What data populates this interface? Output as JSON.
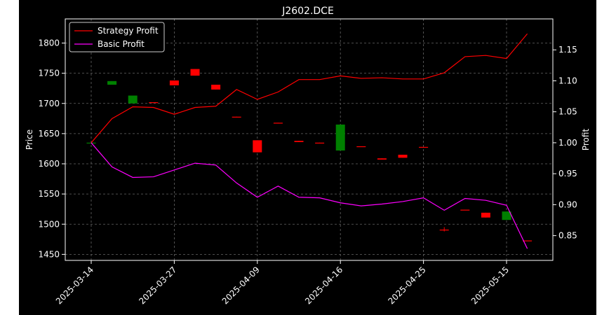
{
  "chart_data": {
    "type": "candlestick+line",
    "title": "J2602.DCE",
    "xlabel": "",
    "ylabel_left": "Price",
    "ylabel_right": "Profit",
    "left_ylim": [
      1440,
      1840
    ],
    "right_ylim": [
      0.81,
      1.2
    ],
    "left_yticks": [
      1450,
      1500,
      1550,
      1600,
      1650,
      1700,
      1750,
      1800
    ],
    "right_yticks": [
      0.85,
      0.9,
      0.95,
      1.0,
      1.05,
      1.1,
      1.15
    ],
    "right_ytick_labels": [
      "0.85",
      "0.90",
      "0.95",
      "1.00",
      "1.05",
      "1.10",
      "1.15"
    ],
    "xtick_labels": [
      {
        "index": 0,
        "label": "2025-03-14"
      },
      {
        "index": 4,
        "label": "2025-03-27"
      },
      {
        "index": 8,
        "label": "2025-04-09"
      },
      {
        "index": 12,
        "label": "2025-04-16"
      },
      {
        "index": 16,
        "label": "2025-04-25"
      },
      {
        "index": 20,
        "label": "2025-05-15"
      }
    ],
    "grid": true,
    "legend_placement": "top-left",
    "colors": {
      "up": "#008000",
      "down": "#ff0000",
      "strategy": "#ff0000",
      "basic": "#ff00ff",
      "grid": "#666666"
    },
    "candles": [
      {
        "i": 0,
        "open": 1635,
        "close": 1635,
        "high": 1635,
        "low": 1635
      },
      {
        "i": 1,
        "open": 1731,
        "close": 1737,
        "high": 1737,
        "low": 1731
      },
      {
        "i": 2,
        "open": 1700,
        "close": 1713,
        "high": 1713,
        "low": 1700
      },
      {
        "i": 3,
        "open": 1702,
        "close": 1701,
        "high": 1702,
        "low": 1701
      },
      {
        "i": 4,
        "open": 1738,
        "close": 1730,
        "high": 1738,
        "low": 1730
      },
      {
        "i": 5,
        "open": 1757,
        "close": 1746,
        "high": 1757,
        "low": 1746
      },
      {
        "i": 6,
        "open": 1731,
        "close": 1723,
        "high": 1731,
        "low": 1723
      },
      {
        "i": 7,
        "open": 1678,
        "close": 1677,
        "high": 1678,
        "low": 1677
      },
      {
        "i": 8,
        "open": 1639,
        "close": 1619,
        "high": 1639,
        "low": 1619
      },
      {
        "i": 9,
        "open": 1668,
        "close": 1667,
        "high": 1668,
        "low": 1667
      },
      {
        "i": 10,
        "open": 1638,
        "close": 1636,
        "high": 1638,
        "low": 1636
      },
      {
        "i": 11,
        "open": 1635,
        "close": 1634,
        "high": 1635,
        "low": 1634
      },
      {
        "i": 12,
        "open": 1622,
        "close": 1665,
        "high": 1665,
        "low": 1622
      },
      {
        "i": 13,
        "open": 1629,
        "close": 1628,
        "high": 1629,
        "low": 1628
      },
      {
        "i": 14,
        "open": 1609,
        "close": 1607,
        "high": 1609,
        "low": 1607
      },
      {
        "i": 15,
        "open": 1615,
        "close": 1610,
        "high": 1615,
        "low": 1610
      },
      {
        "i": 16,
        "open": 1628,
        "close": 1627,
        "high": 1628,
        "low": 1627
      },
      {
        "i": 17,
        "open": 1491,
        "close": 1490,
        "high": 1495,
        "low": 1488
      },
      {
        "i": 18,
        "open": 1524,
        "close": 1523,
        "high": 1524,
        "low": 1523
      },
      {
        "i": 19,
        "open": 1519,
        "close": 1511,
        "high": 1519,
        "low": 1511
      },
      {
        "i": 20,
        "open": 1507,
        "close": 1521,
        "high": 1521,
        "low": 1507
      },
      {
        "i": 21,
        "open": 1473,
        "close": 1472,
        "high": 1473,
        "low": 1472
      }
    ],
    "series": [
      {
        "name": "Strategy Profit",
        "axis": "right",
        "values": [
          1.0,
          1.039,
          1.058,
          1.057,
          1.046,
          1.057,
          1.059,
          1.086,
          1.07,
          1.082,
          1.102,
          1.102,
          1.108,
          1.104,
          1.105,
          1.103,
          1.103,
          1.113,
          1.139,
          1.141,
          1.136,
          1.176
        ]
      },
      {
        "name": "Basic Profit",
        "axis": "right",
        "values": [
          1.0,
          0.961,
          0.944,
          0.945,
          0.956,
          0.967,
          0.964,
          0.935,
          0.912,
          0.93,
          0.912,
          0.911,
          0.903,
          0.898,
          0.901,
          0.905,
          0.911,
          0.891,
          0.91,
          0.907,
          0.899,
          0.829
        ]
      }
    ]
  }
}
